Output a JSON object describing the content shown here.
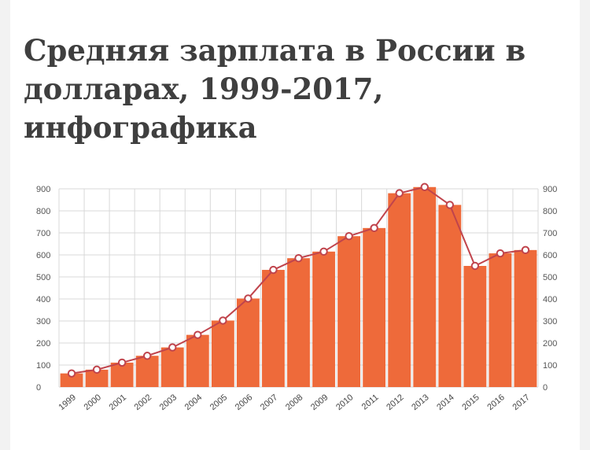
{
  "title": "Средняя зарплата в России в долларах, 1999-2017, инфографика",
  "colors": {
    "background": "#f2f2f2",
    "card": "#ffffff",
    "bar": "#ee6a3a",
    "line": "#c0444c",
    "marker_fill": "#ffffff",
    "grid": "#d8d8d8",
    "title_text": "#3f3f3f"
  },
  "chart_data": {
    "type": "bar",
    "title": "",
    "xlabel": "",
    "ylabel": "",
    "ylim": [
      0,
      900
    ],
    "yticks": [
      0,
      100,
      200,
      300,
      400,
      500,
      600,
      700,
      800,
      900
    ],
    "y_axis_sides": "left and right",
    "grid": true,
    "legend": "none",
    "categories": [
      "1999",
      "2000",
      "2001",
      "2002",
      "2003",
      "2004",
      "2005",
      "2006",
      "2007",
      "2008",
      "2009",
      "2010",
      "2011",
      "2012",
      "2013",
      "2014",
      "2015",
      "2016",
      "2017"
    ],
    "series": [
      {
        "type": "bar",
        "values": [
          62,
          79,
          111,
          142,
          180,
          237,
          302,
          402,
          532,
          585,
          615,
          685,
          722,
          880,
          908,
          827,
          550,
          607,
          622
        ]
      },
      {
        "type": "line",
        "values": [
          62,
          79,
          111,
          142,
          180,
          237,
          302,
          402,
          532,
          585,
          615,
          685,
          722,
          880,
          908,
          827,
          550,
          607,
          622
        ]
      }
    ]
  }
}
